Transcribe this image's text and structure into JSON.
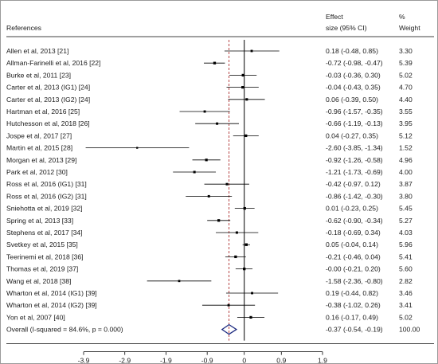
{
  "chart_data": {
    "type": "forest",
    "headers": {
      "references": "References",
      "effect_line1": "Effect",
      "effect_line2": "size (95% CI)",
      "weight_line1": "%",
      "weight_line2": "Weight"
    },
    "studies": [
      {
        "label": "Allen et al, 2013 [21]",
        "es": 0.18,
        "lo": -0.48,
        "hi": 0.85,
        "ci_text": "0.18 (-0.48, 0.85)",
        "weight": "3.30"
      },
      {
        "label": "Allman-Farinelli et al, 2016 [22]",
        "es": -0.72,
        "lo": -0.98,
        "hi": -0.47,
        "ci_text": "-0.72 (-0.98, -0.47)",
        "weight": "5.39"
      },
      {
        "label": "Burke et al, 2011 [23]",
        "es": -0.03,
        "lo": -0.36,
        "hi": 0.3,
        "ci_text": "-0.03 (-0.36, 0.30)",
        "weight": "5.02"
      },
      {
        "label": "Carter et al, 2013 (IG1) [24]",
        "es": -0.04,
        "lo": -0.43,
        "hi": 0.35,
        "ci_text": "-0.04 (-0.43, 0.35)",
        "weight": "4.70"
      },
      {
        "label": "Carter et al, 2013 (IG2) [24]",
        "es": 0.06,
        "lo": -0.39,
        "hi": 0.5,
        "ci_text": "0.06 (-0.39, 0.50)",
        "weight": "4.40"
      },
      {
        "label": "Hartman et al, 2016 [25]",
        "es": -0.96,
        "lo": -1.57,
        "hi": -0.35,
        "ci_text": "-0.96 (-1.57, -0.35)",
        "weight": "3.55"
      },
      {
        "label": "Hutchesson et al, 2018 [26]",
        "es": -0.66,
        "lo": -1.19,
        "hi": -0.13,
        "ci_text": "-0.66 (-1.19, -0.13)",
        "weight": "3.95"
      },
      {
        "label": "Jospe et al, 2017 [27]",
        "es": 0.04,
        "lo": -0.27,
        "hi": 0.35,
        "ci_text": "0.04 (-0.27, 0.35)",
        "weight": "5.12"
      },
      {
        "label": "Martin et al, 2015 [28]",
        "es": -2.6,
        "lo": -3.85,
        "hi": -1.34,
        "ci_text": "-2.60 (-3.85, -1.34)",
        "weight": "1.52"
      },
      {
        "label": "Morgan et al, 2013 [29]",
        "es": -0.92,
        "lo": -1.26,
        "hi": -0.58,
        "ci_text": "-0.92 (-1.26, -0.58)",
        "weight": "4.96"
      },
      {
        "label": "Park et al, 2012 [30]",
        "es": -1.21,
        "lo": -1.73,
        "hi": -0.69,
        "ci_text": "-1.21 (-1.73, -0.69)",
        "weight": "4.00"
      },
      {
        "label": "Ross et al, 2016 (IG1) [31]",
        "es": -0.42,
        "lo": -0.97,
        "hi": 0.12,
        "ci_text": "-0.42 (-0.97, 0.12)",
        "weight": "3.87"
      },
      {
        "label": "Ross et al, 2016 (IG2) [31]",
        "es": -0.86,
        "lo": -1.42,
        "hi": -0.3,
        "ci_text": "-0.86 (-1.42, -0.30)",
        "weight": "3.80"
      },
      {
        "label": "Sniehotta et al, 2019 [32]",
        "es": 0.01,
        "lo": -0.23,
        "hi": 0.25,
        "ci_text": "0.01 (-0.23, 0.25)",
        "weight": "5.45"
      },
      {
        "label": "Spring et al, 2013 [33]",
        "es": -0.62,
        "lo": -0.9,
        "hi": -0.34,
        "ci_text": "-0.62 (-0.90, -0.34)",
        "weight": "5.27"
      },
      {
        "label": "Stephens et al, 2017 [34]",
        "es": -0.18,
        "lo": -0.69,
        "hi": 0.34,
        "ci_text": "-0.18 (-0.69, 0.34)",
        "weight": "4.03"
      },
      {
        "label": "Svetkey et al, 2015 [35]",
        "es": 0.05,
        "lo": -0.04,
        "hi": 0.14,
        "ci_text": "0.05 (-0.04, 0.14)",
        "weight": "5.96"
      },
      {
        "label": "Teerinemi et al, 2018 [36]",
        "es": -0.21,
        "lo": -0.46,
        "hi": 0.04,
        "ci_text": "-0.21 (-0.46, 0.04)",
        "weight": "5.41"
      },
      {
        "label": "Thomas et al, 2019 [37]",
        "es": 0.0,
        "lo": -0.21,
        "hi": 0.2,
        "ci_text": "-0.00 (-0.21, 0.20)",
        "weight": "5.60"
      },
      {
        "label": "Wang et al, 2018 [38]",
        "es": -1.58,
        "lo": -2.36,
        "hi": -0.8,
        "ci_text": "-1.58 (-2.36, -0.80)",
        "weight": "2.82"
      },
      {
        "label": "Wharton et al, 2014 (IG1) [39]",
        "es": 0.19,
        "lo": -0.44,
        "hi": 0.82,
        "ci_text": "0.19 (-0.44, 0.82)",
        "weight": "3.46"
      },
      {
        "label": "Wharton et al, 2014 (IG2) [39]",
        "es": -0.38,
        "lo": -1.02,
        "hi": 0.26,
        "ci_text": "-0.38 (-1.02, 0.26)",
        "weight": "3.41"
      },
      {
        "label": "Yon et al, 2007 [40]",
        "es": 0.16,
        "lo": -0.17,
        "hi": 0.49,
        "ci_text": "0.16 (-0.17, 0.49)",
        "weight": "5.02"
      }
    ],
    "overall": {
      "label": "Overall  (I-squared = 84.6%, p = 0.000)",
      "es": -0.37,
      "lo": -0.54,
      "hi": -0.19,
      "ci_text": "-0.37 (-0.54, -0.19)",
      "weight": "100.00"
    },
    "x_ticks": [
      -3.9,
      -2.9,
      -1.9,
      -0.9,
      0,
      0.9,
      1.9
    ],
    "x_tick_labels": [
      "-3.9",
      "-2.9",
      "-1.9",
      "-0.9",
      "0",
      "0.9",
      "1.9"
    ],
    "xlim": [
      -3.9,
      1.9
    ],
    "null_line": 0,
    "overall_line_style": "dashed",
    "colors": {
      "text": "#1a1a1a",
      "marker": "#000000",
      "ci_line": "#000000",
      "overall_diamond": "#1c2a80",
      "overall_dash": "#b03030",
      "axis": "#000000",
      "frame": "#9a9a9a"
    }
  }
}
